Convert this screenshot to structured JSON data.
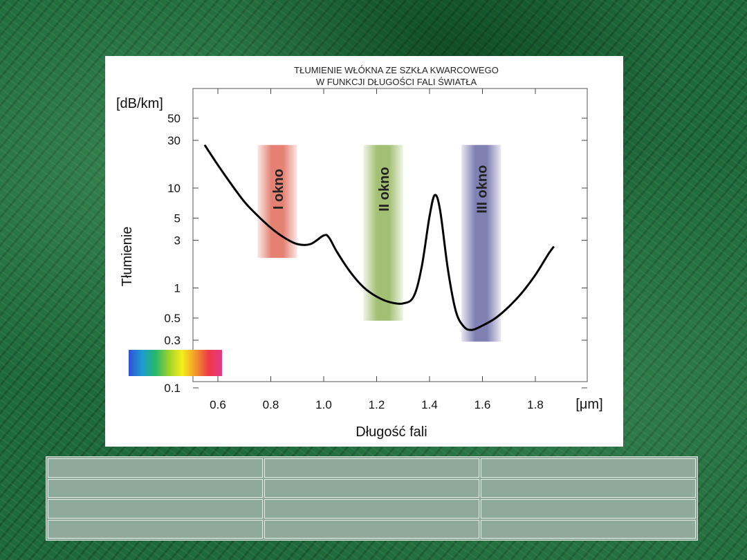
{
  "chart_data": {
    "type": "line",
    "title_line1": "TŁUMIENIE WŁÓKNA ZE SZKŁA KWARCOWEGO",
    "title_line2": "W FUNKCJI DŁUGOŚCI FALI ŚWIATŁA",
    "ylabel": "Tłumienie",
    "yunit": "[dB/km]",
    "xlabel": "Długość fali",
    "xunit": "[μm]",
    "yscale": "log",
    "ylim": [
      0.1,
      70
    ],
    "xlim": [
      0.5,
      1.95
    ],
    "x_ticks": [
      {
        "value": 0.6,
        "label": "0.6"
      },
      {
        "value": 0.8,
        "label": "0.8"
      },
      {
        "value": 1.0,
        "label": "1.0"
      },
      {
        "value": 1.2,
        "label": "1.2"
      },
      {
        "value": 1.4,
        "label": "1.4"
      },
      {
        "value": 1.6,
        "label": "1.6"
      },
      {
        "value": 1.8,
        "label": "1.8"
      }
    ],
    "y_ticks": [
      {
        "value": 0.1,
        "label": "0.1"
      },
      {
        "value": 0.3,
        "label": "0.3"
      },
      {
        "value": 0.5,
        "label": "0.5"
      },
      {
        "value": 1,
        "label": "1"
      },
      {
        "value": 3,
        "label": "3"
      },
      {
        "value": 5,
        "label": "5"
      },
      {
        "value": 10,
        "label": "10"
      },
      {
        "value": 30,
        "label": "30"
      },
      {
        "value": 50,
        "label": "50"
      }
    ],
    "series": [
      {
        "points": [
          [
            0.55,
            27
          ],
          [
            0.6,
            17
          ],
          [
            0.65,
            11
          ],
          [
            0.7,
            7.3
          ],
          [
            0.75,
            5.3
          ],
          [
            0.8,
            4.0
          ],
          [
            0.85,
            3.2
          ],
          [
            0.9,
            2.75
          ],
          [
            0.95,
            2.75
          ],
          [
            1.0,
            3.35
          ],
          [
            1.02,
            3.2
          ],
          [
            1.05,
            2.3
          ],
          [
            1.1,
            1.45
          ],
          [
            1.15,
            1.02
          ],
          [
            1.2,
            0.82
          ],
          [
            1.25,
            0.72
          ],
          [
            1.3,
            0.7
          ],
          [
            1.34,
            0.82
          ],
          [
            1.37,
            1.6
          ],
          [
            1.4,
            5.2
          ],
          [
            1.42,
            8.5
          ],
          [
            1.44,
            6.0
          ],
          [
            1.47,
            1.5
          ],
          [
            1.5,
            0.58
          ],
          [
            1.53,
            0.41
          ],
          [
            1.56,
            0.38
          ],
          [
            1.6,
            0.42
          ],
          [
            1.65,
            0.5
          ],
          [
            1.7,
            0.65
          ],
          [
            1.75,
            0.9
          ],
          [
            1.8,
            1.35
          ],
          [
            1.85,
            2.2
          ],
          [
            1.87,
            2.6
          ]
        ]
      }
    ],
    "windows": [
      {
        "label": "I okno",
        "x_from": 0.75,
        "x_to": 0.9,
        "y_from": 2.0,
        "y_to": 27,
        "color": "#e06b5a"
      },
      {
        "label": "II okno",
        "x_from": 1.15,
        "x_to": 1.3,
        "y_from": 0.47,
        "y_to": 27,
        "color": "#93b45a"
      },
      {
        "label": "III okno",
        "x_from": 1.52,
        "x_to": 1.67,
        "y_from": 0.29,
        "y_to": 27,
        "color": "#6b6aa6"
      }
    ],
    "spectrum_colors": [
      "#2f4fd6",
      "#1f9bd1",
      "#24b86a",
      "#9bd12c",
      "#f4ee1d",
      "#f39a2b",
      "#ef3848",
      "#e33a8a"
    ]
  },
  "table": {
    "rows": [
      [
        "",
        "",
        ""
      ],
      [
        "",
        "",
        ""
      ],
      [
        "",
        "",
        ""
      ],
      [
        "",
        "",
        ""
      ]
    ]
  }
}
